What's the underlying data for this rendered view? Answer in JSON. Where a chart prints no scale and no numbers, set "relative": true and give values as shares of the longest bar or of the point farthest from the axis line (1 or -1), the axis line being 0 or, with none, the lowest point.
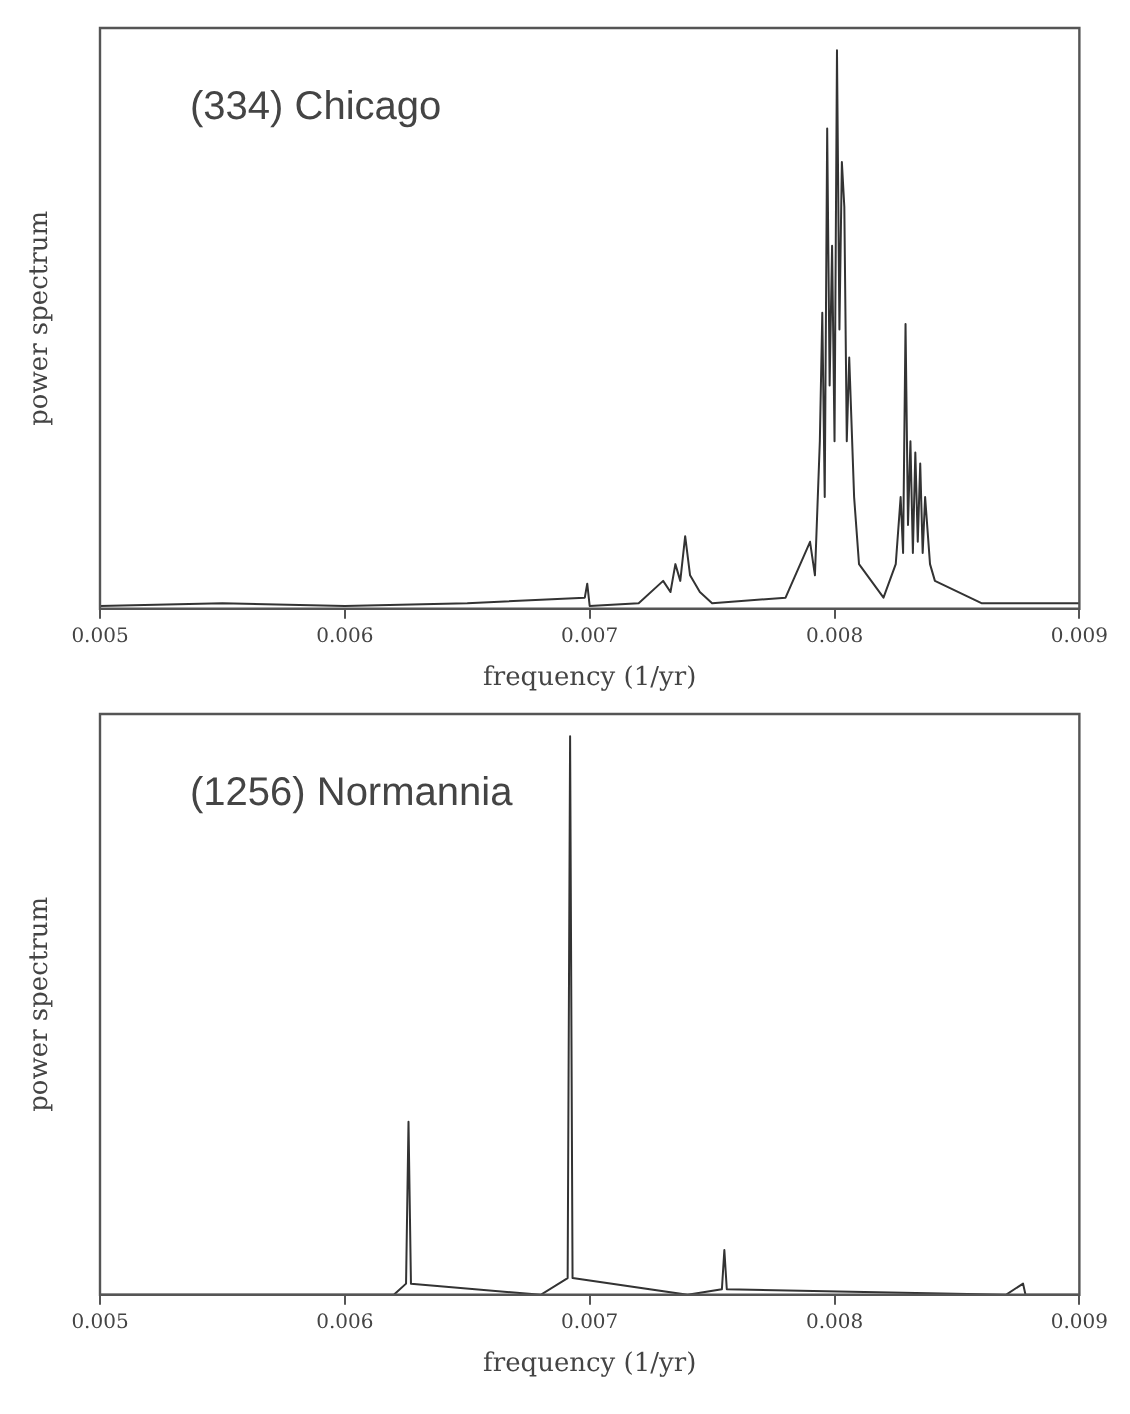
{
  "chart_data": [
    {
      "type": "line",
      "relative": true,
      "xlabel": "frequency (1/yr)",
      "ylabel": "power spectrum",
      "annotations": [
        "(334) Chicago"
      ],
      "xlim": [
        0.005,
        0.009
      ],
      "xticks": [
        0.005,
        0.006,
        0.007,
        0.008,
        0.009
      ],
      "grid": false,
      "legend": false,
      "marker": "none",
      "line_style": "solid",
      "series": [
        {
          "color": "#333333",
          "x": [
            0.005,
            0.0055,
            0.006,
            0.0065,
            0.00698,
            0.00699,
            0.007,
            0.0072,
            0.0073,
            0.00733,
            0.00735,
            0.00737,
            0.00739,
            0.00741,
            0.00745,
            0.0075,
            0.0078,
            0.0079,
            0.00792,
            0.00794,
            0.00795,
            0.00796,
            0.00797,
            0.00798,
            0.00799,
            0.008,
            0.00801,
            0.00802,
            0.00803,
            0.00804,
            0.00805,
            0.00806,
            0.00808,
            0.0081,
            0.0082,
            0.00825,
            0.00827,
            0.00828,
            0.00829,
            0.0083,
            0.00831,
            0.00832,
            0.00833,
            0.00834,
            0.00835,
            0.00836,
            0.00837,
            0.00839,
            0.00841,
            0.0086,
            0.009
          ],
          "values": [
            0.005,
            0.01,
            0.005,
            0.01,
            0.02,
            0.045,
            0.005,
            0.01,
            0.05,
            0.03,
            0.08,
            0.05,
            0.13,
            0.06,
            0.03,
            0.01,
            0.02,
            0.12,
            0.06,
            0.3,
            0.53,
            0.2,
            0.86,
            0.4,
            0.65,
            0.3,
            1,
            0.5,
            0.8,
            0.72,
            0.3,
            0.45,
            0.2,
            0.08,
            0.02,
            0.08,
            0.2,
            0.1,
            0.51,
            0.15,
            0.3,
            0.1,
            0.28,
            0.12,
            0.26,
            0.1,
            0.2,
            0.08,
            0.05,
            0.01,
            0.01
          ]
        }
      ]
    },
    {
      "type": "line",
      "relative": true,
      "xlabel": "frequency (1/yr)",
      "ylabel": "power spectrum",
      "annotations": [
        "(1256) Normannia"
      ],
      "xlim": [
        0.005,
        0.009
      ],
      "xticks": [
        0.005,
        0.006,
        0.007,
        0.008,
        0.009
      ],
      "grid": false,
      "legend": false,
      "marker": "none",
      "line_style": "solid",
      "series": [
        {
          "color": "#333333",
          "x": [
            0.005,
            0.0062,
            0.00625,
            0.00626,
            0.00627,
            0.0068,
            0.00691,
            0.00692,
            0.00693,
            0.0074,
            0.00754,
            0.00755,
            0.00756,
            0.0087,
            0.00877,
            0.00878,
            0.009
          ],
          "values": [
            0,
            0,
            0.02,
            0.31,
            0.02,
            0,
            0.03,
            1,
            0.03,
            0,
            0.01,
            0.08,
            0.01,
            0,
            0.02,
            0,
            0
          ]
        }
      ]
    }
  ]
}
